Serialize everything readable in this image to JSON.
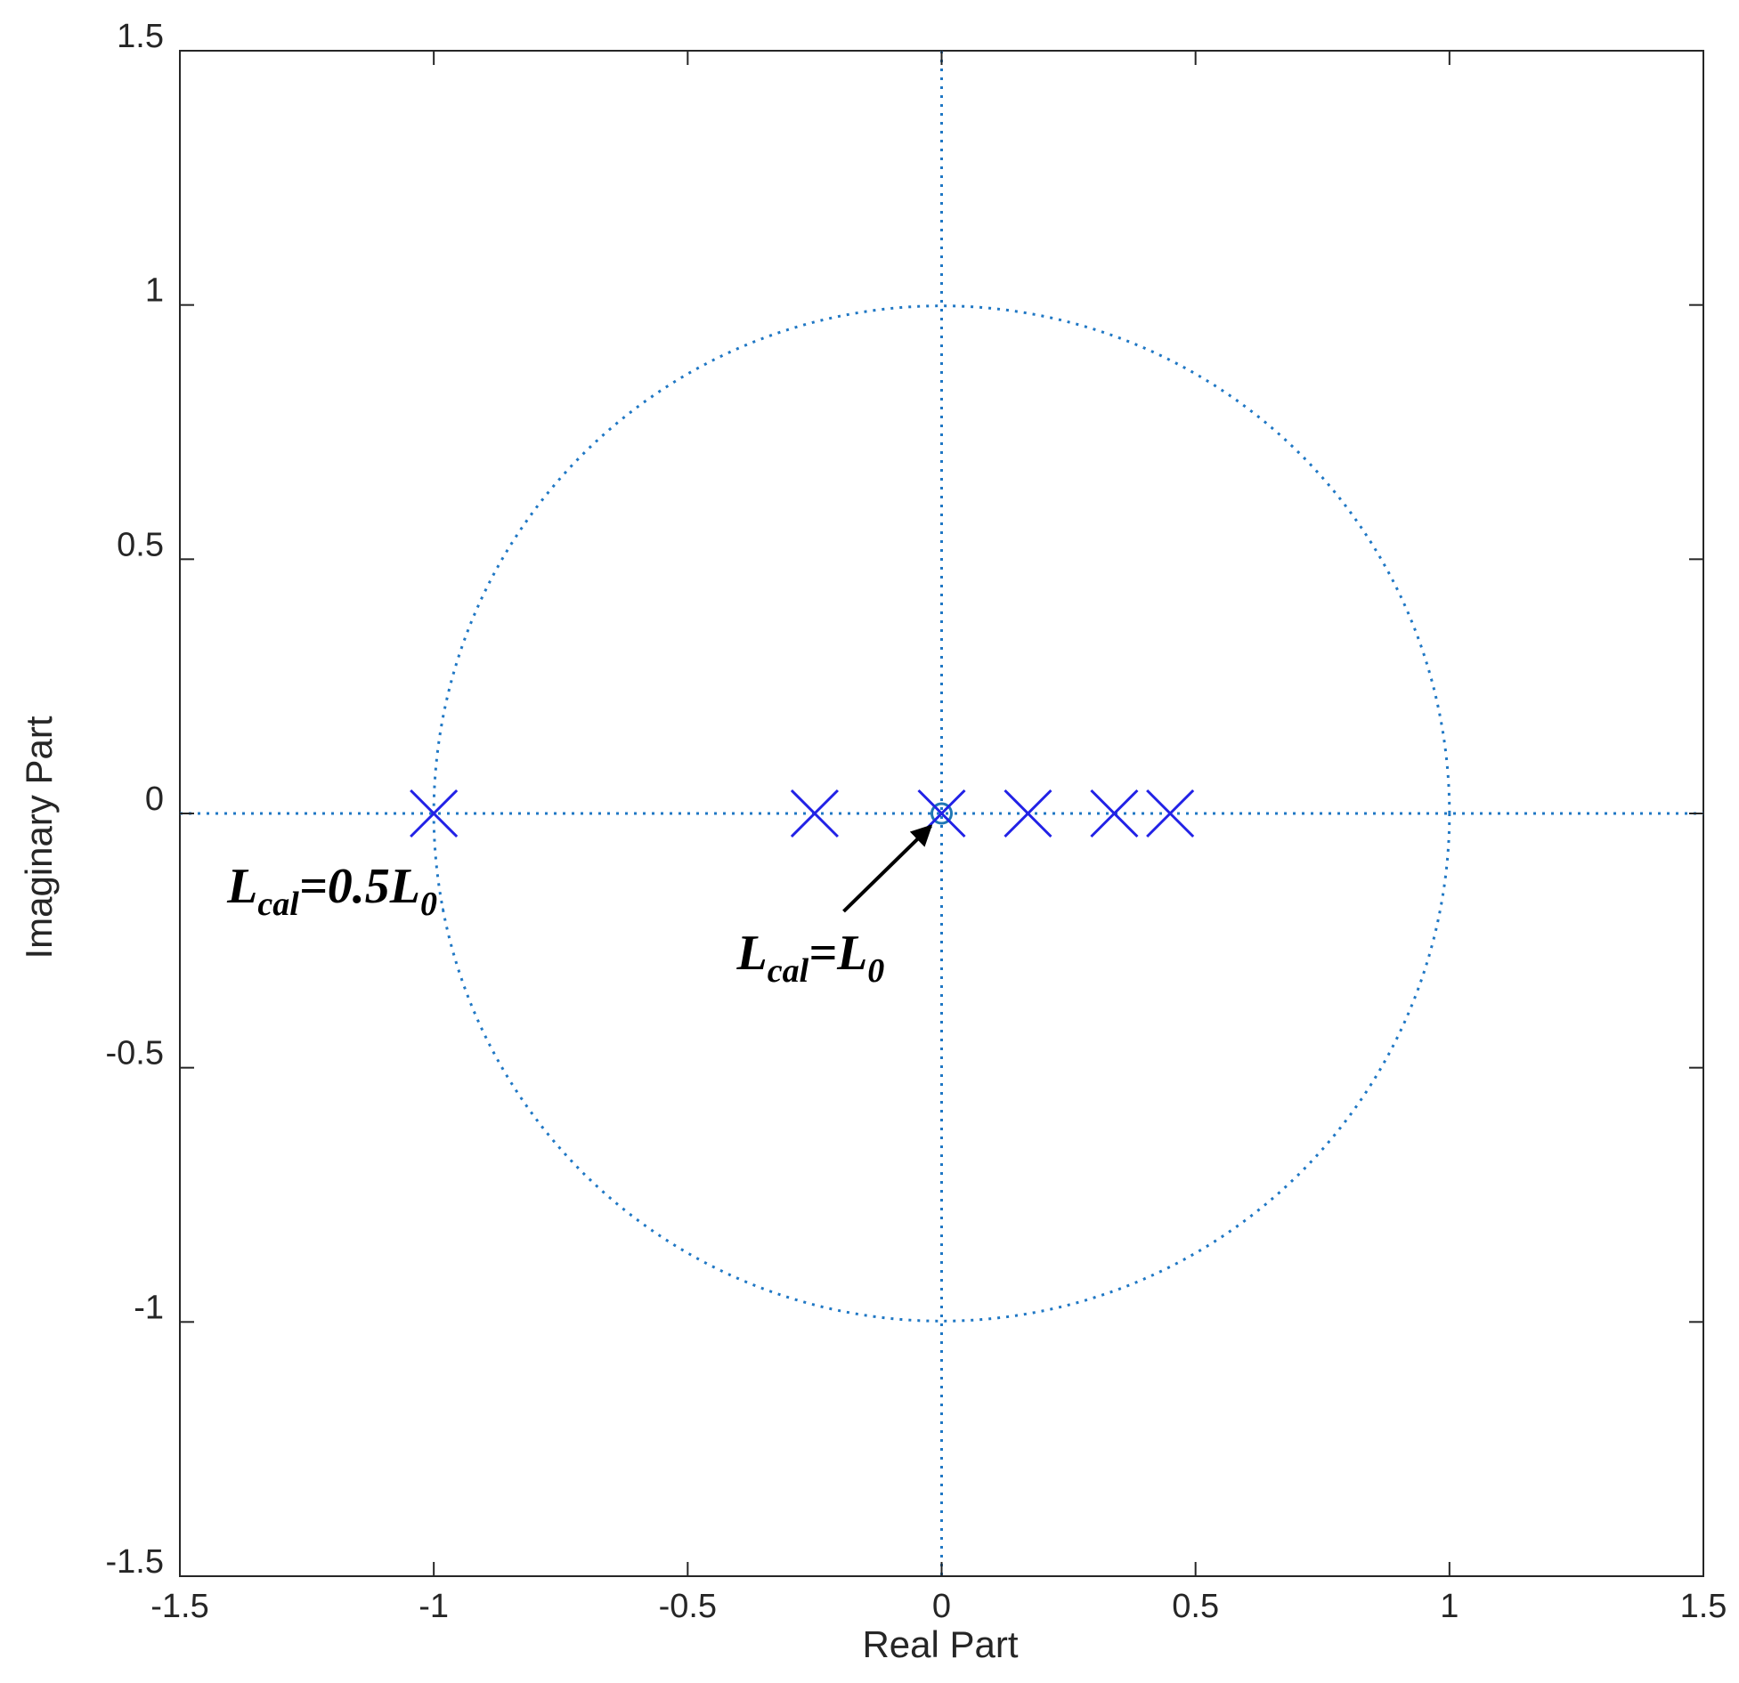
{
  "chart_data": {
    "type": "scatter",
    "subtype": "pole-zero-map",
    "title": "",
    "xlabel": "Real Part",
    "ylabel": "Imaginary Part",
    "xlim": [
      -1.5,
      1.5
    ],
    "ylim": [
      -1.5,
      1.5
    ],
    "x_ticks": [
      -1.5,
      -1,
      -0.5,
      0,
      0.5,
      1,
      1.5
    ],
    "x_tick_labels": [
      "-1.5",
      "-1",
      "-0.5",
      "0",
      "0.5",
      "1",
      "1.5"
    ],
    "y_ticks": [
      -1.5,
      -1,
      -0.5,
      0,
      0.5,
      1,
      1.5
    ],
    "y_tick_labels": [
      "-1.5",
      "-1",
      "-0.5",
      "0",
      "0.5",
      "1",
      "1.5"
    ],
    "grid": false,
    "unit_circle": true,
    "poles": [
      {
        "x": -1.0,
        "y": 0
      },
      {
        "x": -0.25,
        "y": 0
      },
      {
        "x": 0.0,
        "y": 0
      },
      {
        "x": 0.17,
        "y": 0
      },
      {
        "x": 0.34,
        "y": 0
      },
      {
        "x": 0.45,
        "y": 0
      }
    ],
    "zeros": [
      {
        "x": 0.0,
        "y": 0
      }
    ],
    "annotations": [
      {
        "id": "half",
        "base": "L",
        "sub": "cal",
        "mid": "=0.5L",
        "sub2": "0",
        "x": -1.0,
        "y": 0
      },
      {
        "id": "full",
        "base": "L",
        "sub": "cal",
        "mid": "=L",
        "sub2": "0",
        "x": 0.0,
        "y": 0,
        "arrow": true
      }
    ],
    "colors": {
      "pole_marker": "#2222e6",
      "zero_marker": "#1f77b4",
      "circle": "#1f77c4",
      "axes_lines": "#1f77c4",
      "frame": "#262626"
    }
  }
}
